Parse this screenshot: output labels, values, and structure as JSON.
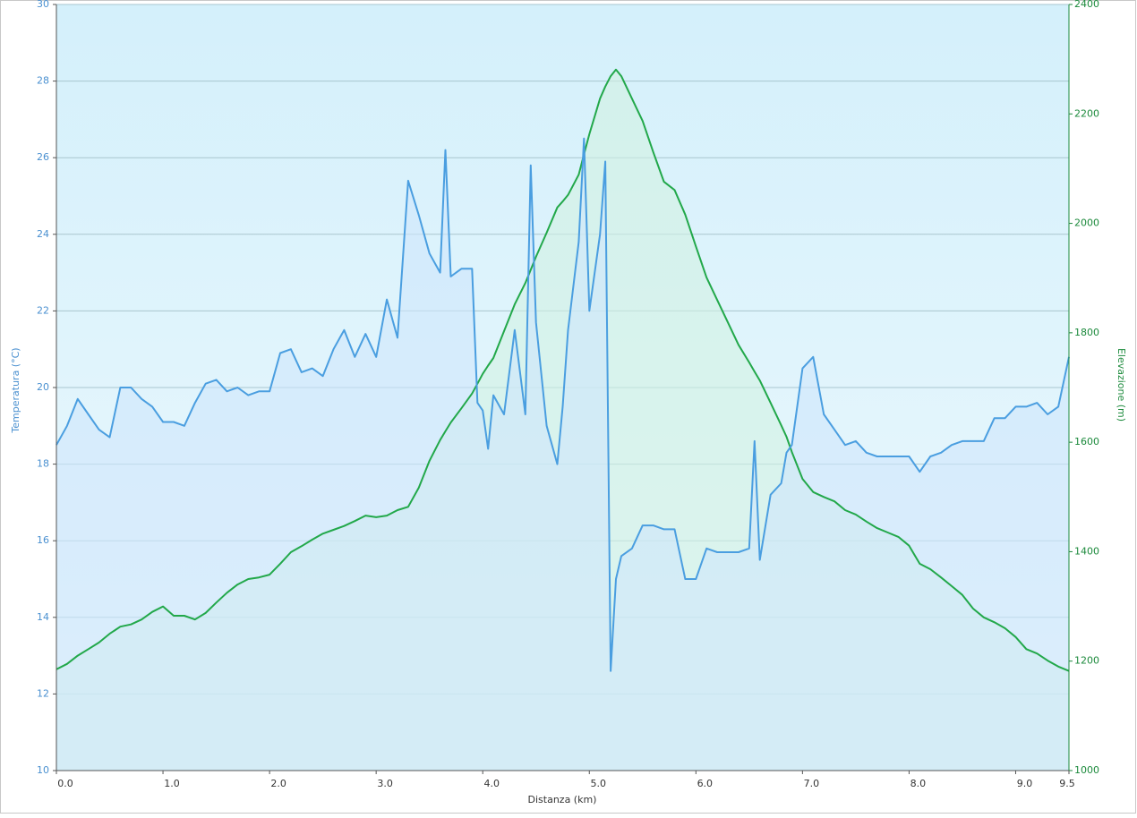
{
  "chart_data": {
    "type": "line",
    "xlabel": "Distanza  (km)",
    "ylabel": "Temperatura (°C)",
    "y2label": "Elevazione (m)",
    "xlim": [
      0,
      9.5
    ],
    "xticks": [
      {
        "value": 0,
        "label": "0.0"
      },
      {
        "value": 1,
        "label": "1.0"
      },
      {
        "value": 2,
        "label": "2.0"
      },
      {
        "value": 3,
        "label": "3.0"
      },
      {
        "value": 4,
        "label": "4.0"
      },
      {
        "value": 5,
        "label": "5.0"
      },
      {
        "value": 6,
        "label": "6.0"
      },
      {
        "value": 7,
        "label": "7.0"
      },
      {
        "value": 8,
        "label": "8.0"
      },
      {
        "value": 9,
        "label": "9.0"
      },
      9.5
    ],
    "ylim": [
      10,
      30
    ],
    "yticks": [
      10,
      12,
      14,
      16,
      18,
      20,
      22,
      24,
      26,
      28,
      30
    ],
    "y2lim": [
      1000,
      2400
    ],
    "y2ticks": [
      1000,
      1200,
      1400,
      1600,
      1800,
      2000,
      2200,
      2400
    ],
    "grid": true,
    "x": [
      0,
      0.1,
      0.2,
      0.3,
      0.4,
      0.5,
      0.6,
      0.7,
      0.8,
      0.9,
      1.0,
      1.1,
      1.2,
      1.3,
      1.4,
      1.5,
      1.6,
      1.7,
      1.8,
      1.9,
      2.0,
      2.1,
      2.2,
      2.3,
      2.4,
      2.5,
      2.6,
      2.7,
      2.8,
      2.9,
      3.0,
      3.1,
      3.2,
      3.3,
      3.4,
      3.5,
      3.6,
      3.65,
      3.7,
      3.8,
      3.9,
      3.95,
      4.0,
      4.05,
      4.1,
      4.2,
      4.3,
      4.4,
      4.45,
      4.5,
      4.6,
      4.7,
      4.75,
      4.8,
      4.9,
      4.95,
      5.0,
      5.1,
      5.15,
      5.2,
      5.25,
      5.3,
      5.4,
      5.5,
      5.6,
      5.7,
      5.8,
      5.9,
      6.0,
      6.1,
      6.2,
      6.3,
      6.4,
      6.5,
      6.55,
      6.6,
      6.7,
      6.8,
      6.85,
      6.9,
      7.0,
      7.1,
      7.2,
      7.3,
      7.4,
      7.5,
      7.6,
      7.7,
      7.8,
      7.9,
      8.0,
      8.1,
      8.2,
      8.3,
      8.4,
      8.5,
      8.6,
      8.7,
      8.8,
      8.9,
      9.0,
      9.1,
      9.2,
      9.3,
      9.4,
      9.5
    ],
    "series": [
      {
        "color": "#4a9ee0",
        "fill": "#cfe6fb",
        "axis": "y",
        "values": [
          18.5,
          19.0,
          19.7,
          19.3,
          18.9,
          18.7,
          20.0,
          20.0,
          19.7,
          19.5,
          19.1,
          19.1,
          19.0,
          19.6,
          20.1,
          20.2,
          19.9,
          20.0,
          19.8,
          19.9,
          19.9,
          20.9,
          21.0,
          20.4,
          20.5,
          20.3,
          21.0,
          21.5,
          20.8,
          21.4,
          20.8,
          22.3,
          21.3,
          25.4,
          24.5,
          23.5,
          23.0,
          26.2,
          22.9,
          23.1,
          23.1,
          19.6,
          19.4,
          18.4,
          19.8,
          19.3,
          21.5,
          19.3,
          25.8,
          21.7,
          19.0,
          18.0,
          19.5,
          21.5,
          23.8,
          26.5,
          22.0,
          24.0,
          25.9,
          12.6,
          15.0,
          15.6,
          15.8,
          16.4,
          16.4,
          16.3,
          16.3,
          15.0,
          15.0,
          15.8,
          15.7,
          15.7,
          15.7,
          15.8,
          18.6,
          15.5,
          17.2,
          17.5,
          18.3,
          18.5,
          20.5,
          20.8,
          19.3,
          18.9,
          18.5,
          18.6,
          18.3,
          18.2,
          18.2,
          18.2,
          18.2,
          17.8,
          18.2,
          18.3,
          18.5,
          18.6,
          18.6,
          18.6,
          19.2,
          19.2,
          19.5,
          19.5,
          19.6,
          19.3,
          19.5,
          20.8
        ]
      },
      {
        "color": "#22a84a",
        "fill": "#d2f2e2",
        "axis": "y2",
        "values": [
          1185,
          1195,
          1210,
          1222,
          1234,
          1250,
          1263,
          1267,
          1276,
          1290,
          1300,
          1283,
          1283,
          1276,
          1288,
          1307,
          1325,
          1340,
          1350,
          1353,
          1358,
          1378,
          1399,
          1410,
          1422,
          1433,
          1440,
          1447,
          1456,
          1466,
          1463,
          1466,
          1476,
          1482,
          1517,
          1566,
          1604,
          1620,
          1636,
          1662,
          1689,
          1707,
          1725,
          1740,
          1754,
          1803,
          1852,
          1891,
          1915,
          1939,
          1983,
          2029,
          2040,
          2052,
          2089,
          2126,
          2163,
          2228,
          2250,
          2269,
          2281,
          2269,
          2228,
          2187,
          2130,
          2076,
          2061,
          2016,
          1958,
          1901,
          1860,
          1819,
          1778,
          1746,
          1729,
          1713,
          1672,
          1631,
          1610,
          1582,
          1533,
          1509,
          1500,
          1492,
          1476,
          1468,
          1455,
          1443,
          1435,
          1427,
          1411,
          1378,
          1368,
          1353,
          1337,
          1321,
          1296,
          1280,
          1271,
          1260,
          1244,
          1222,
          1214,
          1201,
          1190,
          1182
        ]
      }
    ]
  }
}
